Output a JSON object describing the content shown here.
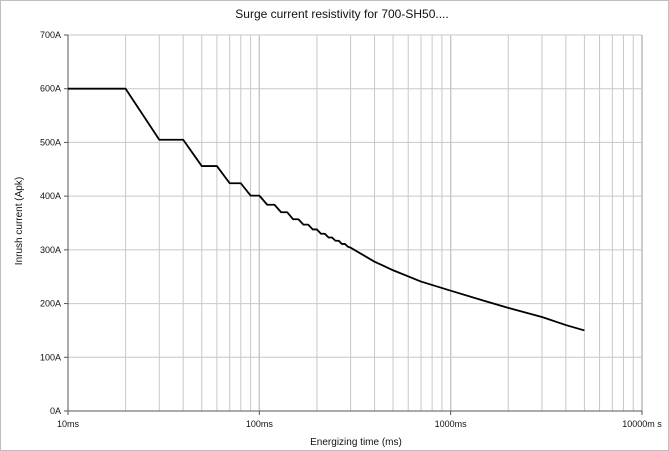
{
  "chart_data": {
    "type": "line",
    "title": "Surge current resistivity for 700-SH50....",
    "xlabel": "Energizing time (ms)",
    "ylabel": "Inrush current (Apk)",
    "x_scale": "log",
    "xlim": [
      10,
      10000
    ],
    "ylim": [
      0,
      700
    ],
    "grid": true,
    "x_tick_labels": [
      "10ms",
      "100ms",
      "1000ms",
      "10000m s"
    ],
    "y_tick_labels": [
      "0A",
      "100A",
      "200A",
      "300A",
      "400A",
      "500A",
      "600A",
      "700A"
    ],
    "series": [
      {
        "values": [
          {
            "x": 10,
            "y": 600
          },
          {
            "x": 20,
            "y": 600
          },
          {
            "x": 30,
            "y": 505
          },
          {
            "x": 40,
            "y": 505
          },
          {
            "x": 50,
            "y": 456
          },
          {
            "x": 60,
            "y": 456
          },
          {
            "x": 70,
            "y": 424
          },
          {
            "x": 80,
            "y": 424
          },
          {
            "x": 90,
            "y": 401
          },
          {
            "x": 100,
            "y": 401
          },
          {
            "x": 110,
            "y": 384
          },
          {
            "x": 120,
            "y": 384
          },
          {
            "x": 130,
            "y": 370
          },
          {
            "x": 140,
            "y": 370
          },
          {
            "x": 150,
            "y": 357
          },
          {
            "x": 160,
            "y": 357
          },
          {
            "x": 170,
            "y": 347
          },
          {
            "x": 180,
            "y": 347
          },
          {
            "x": 190,
            "y": 338
          },
          {
            "x": 200,
            "y": 338
          },
          {
            "x": 210,
            "y": 330
          },
          {
            "x": 220,
            "y": 330
          },
          {
            "x": 230,
            "y": 323
          },
          {
            "x": 240,
            "y": 323
          },
          {
            "x": 250,
            "y": 317
          },
          {
            "x": 260,
            "y": 317
          },
          {
            "x": 270,
            "y": 311
          },
          {
            "x": 280,
            "y": 311
          },
          {
            "x": 290,
            "y": 306
          },
          {
            "x": 300,
            "y": 304
          },
          {
            "x": 400,
            "y": 278
          },
          {
            "x": 500,
            "y": 262
          },
          {
            "x": 700,
            "y": 241
          },
          {
            "x": 1000,
            "y": 224
          },
          {
            "x": 1500,
            "y": 205
          },
          {
            "x": 2000,
            "y": 192
          },
          {
            "x": 3000,
            "y": 175
          },
          {
            "x": 4000,
            "y": 160
          },
          {
            "x": 5000,
            "y": 150
          }
        ]
      }
    ]
  }
}
